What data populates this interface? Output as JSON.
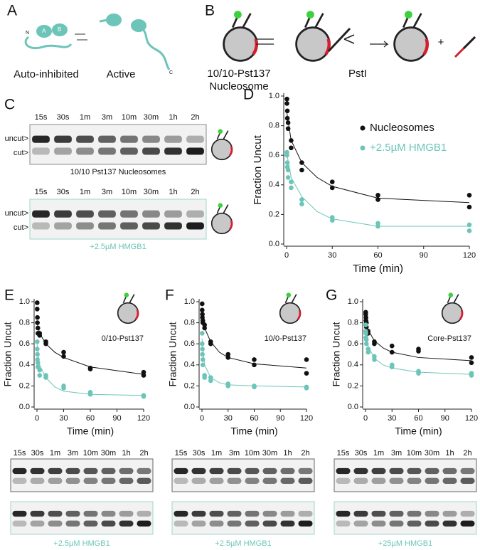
{
  "panel_letters": [
    "A",
    "B",
    "C",
    "D",
    "E",
    "F",
    "G"
  ],
  "panel_a": {
    "domains": [
      "N",
      "A",
      "B",
      "C"
    ],
    "states": [
      "Auto-inhibited",
      "Active"
    ]
  },
  "panel_b": {
    "construct": "10/10-Pst137",
    "construct_type": "Nucleosome",
    "enzyme": "PstI",
    "plus": "+"
  },
  "gels": [
    {
      "lanes": [
        "15s",
        "30s",
        "1m",
        "3m",
        "10m",
        "30m",
        "1h",
        "2h"
      ],
      "band_labels": [
        "uncut>",
        "cut>"
      ],
      "caption": "10/10 Pst137 Nucleosomes"
    },
    {
      "lanes": [
        "15s",
        "30s",
        "1m",
        "3m",
        "10m",
        "30m",
        "1h",
        "2h"
      ],
      "band_labels": [
        "uncut>",
        "cut>"
      ],
      "caption": "+2.5µM HMGB1"
    }
  ],
  "bottom_gels": [
    {
      "lanes": [
        "15s",
        "30s",
        "1m",
        "3m",
        "10m",
        "30m",
        "1h",
        "2h"
      ],
      "caption": "+2.5µM HMGB1"
    },
    {
      "lanes": [
        "15s",
        "30s",
        "1m",
        "3m",
        "10m",
        "30m",
        "1h",
        "2h"
      ],
      "caption": "+2.5µM HMGB1"
    },
    {
      "lanes": [
        "15s",
        "30s",
        "1m",
        "3m",
        "10m",
        "30m",
        "1h",
        "2h"
      ],
      "caption": "+25µM HMGB1"
    }
  ],
  "chart_data": [
    {
      "type": "scatter",
      "x_label": "Time (min)",
      "y_label": "Fraction Uncut",
      "legend": "upper right",
      "xlim": [
        0,
        120
      ],
      "ylim": [
        0,
        1
      ],
      "xticks": [
        0,
        30,
        60,
        90,
        120
      ],
      "yticks": [
        {
          "value": 0,
          "label": "0.0"
        },
        0.2,
        0.4,
        0.6,
        0.8,
        {
          "value": 1,
          "label": "1.0"
        }
      ],
      "series": [
        {
          "name": "Nucleosomes",
          "color": "#111111",
          "x": [
            0.25,
            0.25,
            0.5,
            0.5,
            1,
            1,
            3,
            3,
            10,
            10,
            30,
            30,
            60,
            60,
            120,
            120
          ],
          "values": [
            0.98,
            0.95,
            0.9,
            0.85,
            0.82,
            0.78,
            0.7,
            0.65,
            0.55,
            0.5,
            0.42,
            0.38,
            0.33,
            0.3,
            0.33,
            0.25
          ]
        },
        {
          "name": "+2.5µM HMGB1",
          "color": "#6cc5b8",
          "x": [
            0.25,
            0.25,
            0.5,
            0.5,
            1,
            1,
            3,
            3,
            10,
            10,
            30,
            30,
            60,
            60,
            120,
            120
          ],
          "values": [
            0.62,
            0.6,
            0.55,
            0.52,
            0.5,
            0.45,
            0.42,
            0.38,
            0.3,
            0.27,
            0.18,
            0.16,
            0.14,
            0.12,
            0.13,
            0.09
          ]
        }
      ],
      "fits": [
        {
          "color": "#111111",
          "x": [
            0,
            3,
            10,
            20,
            30,
            60,
            120
          ],
          "values": [
            0.9,
            0.7,
            0.55,
            0.45,
            0.39,
            0.31,
            0.28
          ]
        },
        {
          "color": "#6cc5b8",
          "x": [
            0,
            3,
            10,
            20,
            30,
            60,
            120
          ],
          "values": [
            0.62,
            0.45,
            0.32,
            0.22,
            0.17,
            0.12,
            0.12
          ]
        }
      ]
    },
    {
      "type": "scatter",
      "x_label": "Time (min)",
      "y_label": "Fraction Uncut",
      "annotation": "0/10-Pst137",
      "xlim": [
        0,
        120
      ],
      "ylim": [
        0,
        1
      ],
      "xticks": [
        0,
        30,
        60,
        90,
        120
      ],
      "yticks": [
        {
          "value": 0,
          "label": "0.0"
        },
        0.2,
        0.4,
        0.6,
        0.8,
        {
          "value": 1,
          "label": "1.0"
        }
      ],
      "series": [
        {
          "color": "#111111",
          "x": [
            0.25,
            0.25,
            0.5,
            0.5,
            1,
            1,
            3,
            3,
            10,
            10,
            30,
            30,
            60,
            60,
            120,
            120
          ],
          "values": [
            0.99,
            0.93,
            0.85,
            0.8,
            0.75,
            0.7,
            0.7,
            0.68,
            0.62,
            0.6,
            0.52,
            0.48,
            0.37,
            0.36,
            0.33,
            0.3
          ]
        },
        {
          "color": "#6cc5b8",
          "x": [
            0.25,
            0.25,
            0.5,
            0.5,
            1,
            1,
            3,
            3,
            10,
            10,
            30,
            30,
            60,
            60,
            120,
            120
          ],
          "values": [
            0.62,
            0.55,
            0.5,
            0.45,
            0.42,
            0.38,
            0.35,
            0.3,
            0.3,
            0.28,
            0.2,
            0.18,
            0.14,
            0.12,
            0.11,
            0.1
          ]
        }
      ],
      "fits": [
        {
          "color": "#111111",
          "x": [
            0,
            3,
            10,
            20,
            30,
            60,
            120
          ],
          "values": [
            0.8,
            0.7,
            0.6,
            0.52,
            0.47,
            0.38,
            0.31
          ]
        },
        {
          "color": "#6cc5b8",
          "x": [
            0,
            3,
            10,
            20,
            30,
            60,
            120
          ],
          "values": [
            0.6,
            0.4,
            0.28,
            0.19,
            0.15,
            0.12,
            0.11
          ]
        }
      ]
    },
    {
      "type": "scatter",
      "x_label": "Time (min)",
      "y_label": "Fraction Uncut",
      "annotation": "10/0-Pst137",
      "xlim": [
        0,
        120
      ],
      "ylim": [
        0,
        1
      ],
      "xticks": [
        0,
        30,
        60,
        90,
        120
      ],
      "yticks": [
        {
          "value": 0,
          "label": "0.0"
        },
        0.2,
        0.4,
        0.6,
        0.8,
        {
          "value": 1,
          "label": "1.0"
        }
      ],
      "series": [
        {
          "color": "#111111",
          "x": [
            0.25,
            0.25,
            0.5,
            0.5,
            1,
            1,
            3,
            3,
            10,
            10,
            30,
            30,
            60,
            60,
            120,
            120
          ],
          "values": [
            0.98,
            0.92,
            0.85,
            0.88,
            0.82,
            0.8,
            0.78,
            0.75,
            0.62,
            0.6,
            0.5,
            0.47,
            0.45,
            0.4,
            0.45,
            0.32
          ]
        },
        {
          "color": "#6cc5b8",
          "x": [
            0.25,
            0.25,
            0.5,
            0.5,
            1,
            1,
            3,
            3,
            10,
            10,
            30,
            30,
            60,
            60,
            120,
            120
          ],
          "values": [
            0.7,
            0.6,
            0.55,
            0.5,
            0.45,
            0.4,
            0.3,
            0.28,
            0.28,
            0.25,
            0.22,
            0.2,
            0.2,
            0.19,
            0.19,
            0.18
          ]
        }
      ],
      "fits": [
        {
          "color": "#111111",
          "x": [
            0,
            3,
            10,
            20,
            30,
            60,
            120
          ],
          "values": [
            0.85,
            0.75,
            0.62,
            0.52,
            0.47,
            0.41,
            0.37
          ]
        },
        {
          "color": "#6cc5b8",
          "x": [
            0,
            3,
            10,
            20,
            30,
            60,
            120
          ],
          "values": [
            0.65,
            0.4,
            0.28,
            0.23,
            0.21,
            0.2,
            0.19
          ]
        }
      ]
    },
    {
      "type": "scatter",
      "x_label": "Time (min)",
      "y_label": "Fraction Uncut",
      "annotation": "Core-Pst137",
      "xlim": [
        0,
        120
      ],
      "ylim": [
        0,
        1
      ],
      "xticks": [
        0,
        30,
        60,
        90,
        120
      ],
      "yticks": [
        {
          "value": 0,
          "label": "0.0"
        },
        0.2,
        0.4,
        0.6,
        0.8,
        {
          "value": 1,
          "label": "1.0"
        }
      ],
      "series": [
        {
          "color": "#111111",
          "x": [
            0.25,
            0.25,
            0.5,
            0.5,
            1,
            1,
            3,
            3,
            10,
            10,
            30,
            30,
            60,
            60,
            120,
            120
          ],
          "values": [
            0.9,
            0.88,
            0.85,
            0.82,
            0.8,
            0.76,
            0.72,
            0.7,
            0.62,
            0.6,
            0.58,
            0.52,
            0.55,
            0.53,
            0.47,
            0.42
          ]
        },
        {
          "color": "#6cc5b8",
          "x": [
            0.25,
            0.25,
            0.5,
            0.5,
            1,
            1,
            3,
            3,
            10,
            10,
            30,
            30,
            60,
            60,
            120,
            120
          ],
          "values": [
            0.78,
            0.72,
            0.7,
            0.66,
            0.64,
            0.6,
            0.55,
            0.52,
            0.48,
            0.45,
            0.4,
            0.38,
            0.34,
            0.32,
            0.32,
            0.3
          ]
        }
      ],
      "fits": [
        {
          "color": "#111111",
          "x": [
            0,
            3,
            10,
            20,
            30,
            60,
            120
          ],
          "values": [
            0.85,
            0.73,
            0.63,
            0.56,
            0.52,
            0.47,
            0.44
          ]
        },
        {
          "color": "#6cc5b8",
          "x": [
            0,
            3,
            10,
            20,
            30,
            60,
            120
          ],
          "values": [
            0.75,
            0.58,
            0.46,
            0.4,
            0.37,
            0.33,
            0.31
          ]
        }
      ]
    }
  ]
}
